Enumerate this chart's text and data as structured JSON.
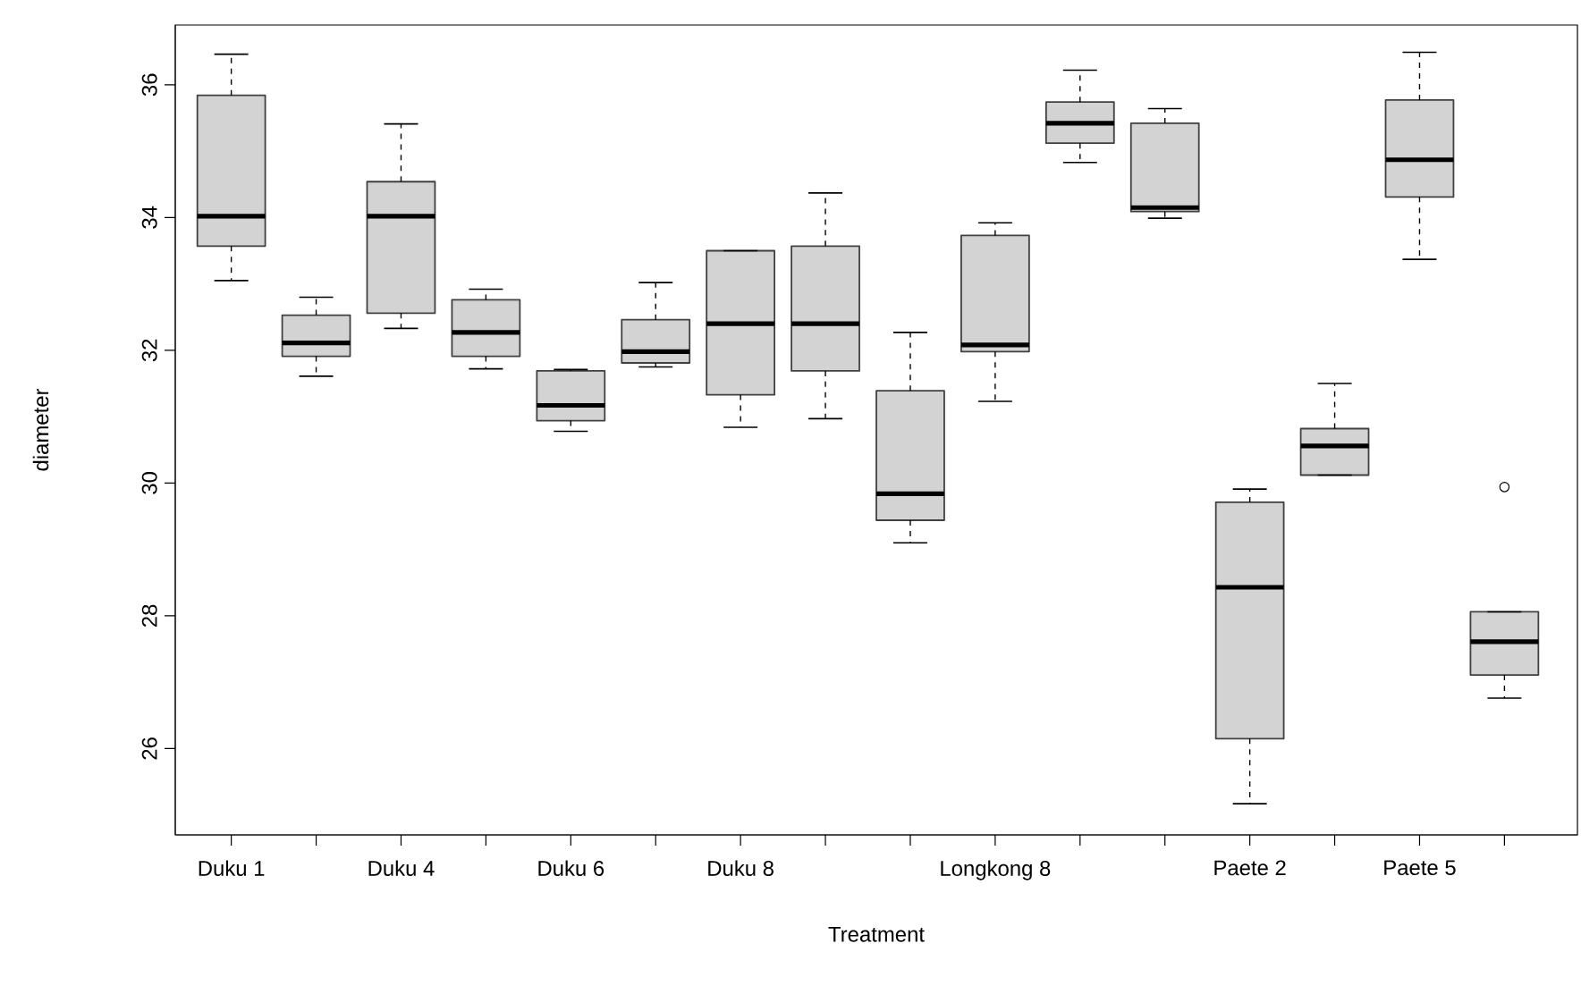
{
  "chart_data": {
    "type": "box",
    "xlabel": "Treatment",
    "ylabel": "diameter",
    "categories": [
      "Duku 1",
      null,
      "Duku 4",
      null,
      "Duku 6",
      null,
      "Duku 8",
      null,
      null,
      "Longkong 8",
      null,
      null,
      "Paete 2",
      null,
      "Paete 5",
      null
    ],
    "color": "#d3d3d3",
    "ylim": [
      24.7,
      36.9
    ],
    "yticks": [
      26,
      28,
      30,
      32,
      34,
      36
    ],
    "grid": false,
    "boxes": [
      {
        "low": 33.05,
        "q1": 33.57,
        "median": 34.02,
        "q3": 35.84,
        "high": 36.46
      },
      {
        "low": 31.61,
        "q1": 31.91,
        "median": 32.11,
        "q3": 32.53,
        "high": 32.8
      },
      {
        "low": 32.33,
        "q1": 32.56,
        "median": 34.02,
        "q3": 34.54,
        "high": 35.41
      },
      {
        "low": 31.72,
        "q1": 31.91,
        "median": 32.27,
        "q3": 32.76,
        "high": 32.92
      },
      {
        "low": 30.78,
        "q1": 30.94,
        "median": 31.17,
        "q3": 31.69,
        "high": 31.71
      },
      {
        "low": 31.75,
        "q1": 31.81,
        "median": 31.98,
        "q3": 32.46,
        "high": 33.02
      },
      {
        "low": 30.84,
        "q1": 31.33,
        "median": 32.4,
        "q3": 33.5,
        "high": 33.5
      },
      {
        "low": 30.97,
        "q1": 31.69,
        "median": 32.4,
        "q3": 33.57,
        "high": 34.37
      },
      {
        "low": 29.1,
        "q1": 29.44,
        "median": 29.84,
        "q3": 31.39,
        "high": 32.27
      },
      {
        "low": 31.23,
        "q1": 31.98,
        "median": 32.08,
        "q3": 33.73,
        "high": 33.92
      },
      {
        "low": 34.83,
        "q1": 35.12,
        "median": 35.42,
        "q3": 35.74,
        "high": 36.22
      },
      {
        "low": 33.99,
        "q1": 34.09,
        "median": 34.15,
        "q3": 35.42,
        "high": 35.64
      },
      {
        "low": 25.17,
        "q1": 26.15,
        "median": 28.43,
        "q3": 29.71,
        "high": 29.91
      },
      {
        "low": 30.12,
        "q1": 30.12,
        "median": 30.56,
        "q3": 30.82,
        "high": 31.5
      },
      {
        "low": 33.37,
        "q1": 34.31,
        "median": 34.87,
        "q3": 35.77,
        "high": 36.49
      },
      {
        "low": 26.76,
        "q1": 27.11,
        "median": 27.61,
        "q3": 28.06,
        "high": 28.06,
        "outliers": [
          29.94
        ]
      }
    ]
  }
}
